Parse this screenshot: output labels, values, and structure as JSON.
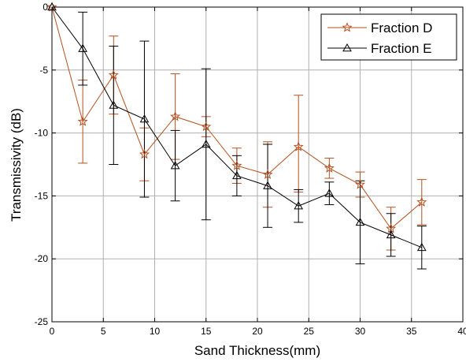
{
  "chart_data": {
    "type": "line",
    "xlabel": "Sand Thickness(mm)",
    "ylabel": "Transmissivity (dB)",
    "xlim": [
      0,
      40
    ],
    "ylim": [
      -25,
      0
    ],
    "xticks": [
      0,
      5,
      10,
      15,
      20,
      25,
      30,
      35,
      40
    ],
    "yticks": [
      -25,
      -20,
      -15,
      -10,
      -5,
      0
    ],
    "grid": true,
    "legend_position": "top-right",
    "x": [
      0,
      3,
      6,
      9,
      12,
      15,
      18,
      21,
      24,
      27,
      30,
      33,
      36
    ],
    "series": [
      {
        "name": "Fraction D",
        "color": "#b5501f",
        "marker": "star",
        "values": [
          0,
          -9.1,
          -5.4,
          -11.7,
          -8.7,
          -9.5,
          -12.6,
          -13.3,
          -11.1,
          -12.8,
          -14.1,
          -17.6,
          -15.5
        ],
        "err_low": [
          0,
          3.3,
          3.1,
          2.1,
          3.4,
          0.8,
          1.4,
          2.6,
          3.6,
          0.8,
          1.0,
          1.7,
          1.8
        ],
        "err_high": [
          0,
          3.3,
          3.1,
          2.1,
          3.4,
          0.8,
          1.4,
          2.6,
          4.1,
          0.8,
          1.0,
          1.7,
          1.8
        ]
      },
      {
        "name": "Fraction E",
        "color": "#000000",
        "marker": "triangle",
        "values": [
          0,
          -3.3,
          -7.8,
          -8.9,
          -12.6,
          -10.9,
          -13.4,
          -14.2,
          -15.8,
          -14.8,
          -17.1,
          -18.1,
          -19.1
        ],
        "err_low": [
          0,
          2.9,
          4.7,
          6.2,
          2.8,
          6.0,
          1.6,
          3.3,
          1.3,
          0.9,
          3.3,
          1.7,
          1.7
        ],
        "err_high": [
          0,
          2.9,
          4.7,
          6.2,
          2.8,
          6.0,
          1.6,
          3.3,
          1.3,
          0.9,
          3.3,
          1.7,
          1.7
        ]
      }
    ]
  }
}
